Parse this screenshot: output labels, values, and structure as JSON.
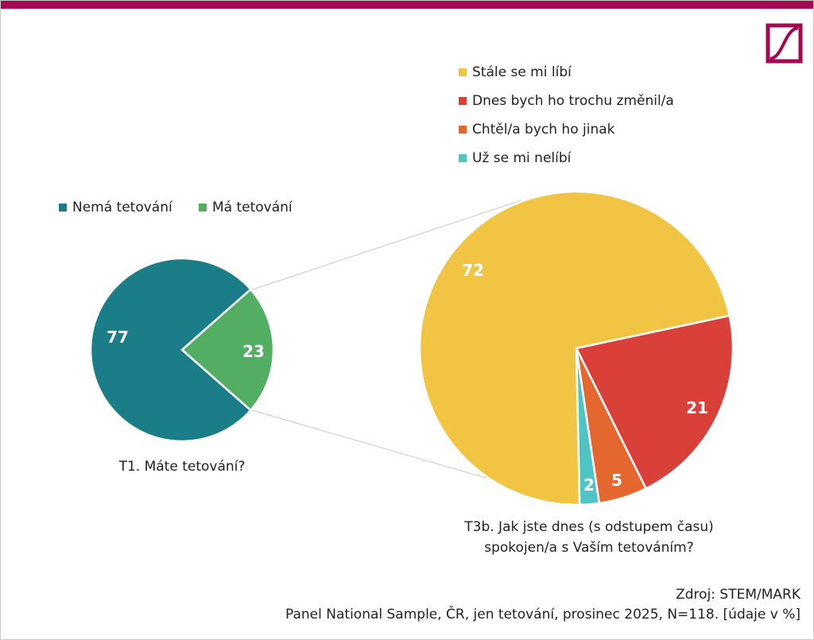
{
  "chart_data": [
    {
      "type": "pie",
      "title": "T1. Máte tetování?",
      "legend_position": "top",
      "categories": [
        "Nemá tetování",
        "Má tetování"
      ],
      "values": [
        77,
        23
      ],
      "colors": [
        "#1a7d87",
        "#52ae62"
      ]
    },
    {
      "type": "pie",
      "title_lines": [
        "T3b. Jak jste dnes (s odstupem času)",
        "spokojen/a s Vaším tetováním?"
      ],
      "legend_position": "top",
      "categories": [
        "Stále se mi líbí",
        "Dnes bych ho trochu změnil/a",
        "Chtěl/a bych ho jinak",
        "Už se mi nelíbí"
      ],
      "values": [
        72,
        21,
        5,
        2
      ],
      "colors": [
        "#f2c443",
        "#d9403a",
        "#e4672f",
        "#4fc4c4"
      ]
    }
  ],
  "source": {
    "line1": "Zdroj: STEM/MARK",
    "line2": "Panel National Sample, ČR, jen tetování, prosinec 2025, N=118. [údaje v %]"
  },
  "brand_color": "#a3094f"
}
